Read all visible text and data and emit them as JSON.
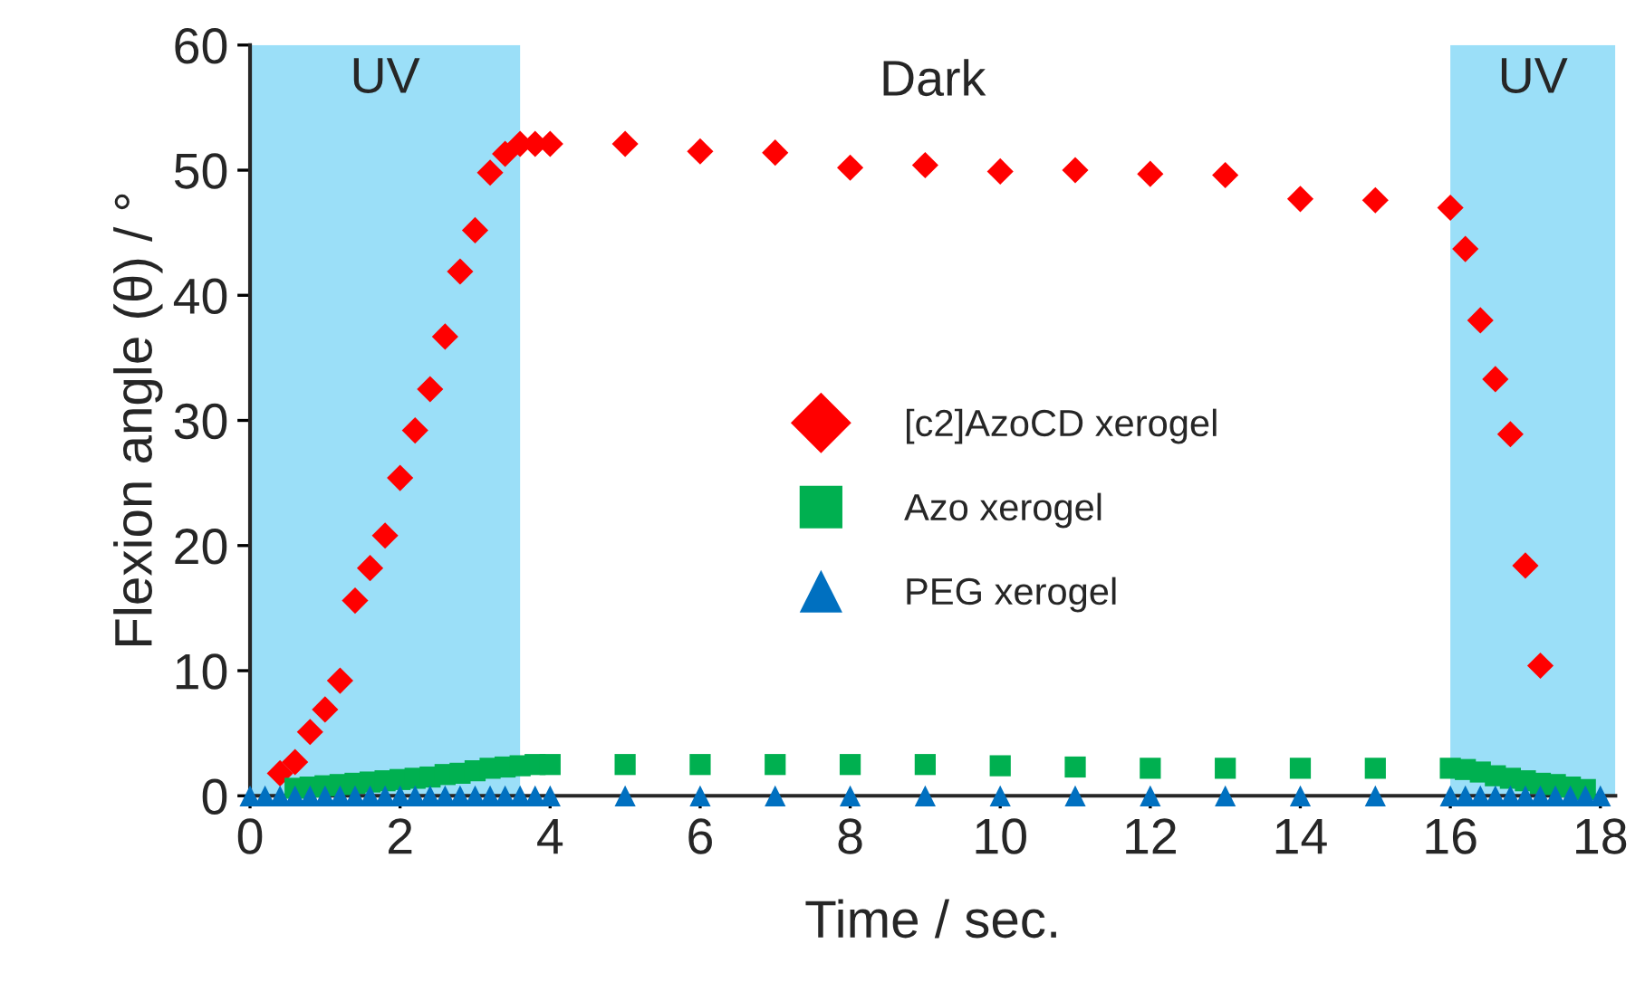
{
  "chart_data": {
    "type": "scatter",
    "xlabel": "Time / sec.",
    "ylabel": "Flexion angle (θ) / °",
    "xlim": [
      0,
      18.2
    ],
    "xticks": [
      0,
      2,
      4,
      6,
      8,
      10,
      12,
      14,
      16,
      18
    ],
    "ylim": [
      0,
      60
    ],
    "yticks": [
      0,
      10,
      20,
      30,
      40,
      50,
      60
    ],
    "grid": false,
    "legend": "center",
    "bands": [
      {
        "axis": "x",
        "from": 0,
        "to": 3.6,
        "label": "UV",
        "color": "#9bdff8"
      },
      {
        "axis": "x",
        "from": 16,
        "to": 18.2,
        "label": "UV",
        "color": "#9bdff8"
      }
    ],
    "annotations": [
      "Dark"
    ],
    "series": [
      {
        "name": "[c2]AzoCD xerogel",
        "color": "#ff0000",
        "marker": "diamond",
        "x": [
          0.4,
          0.6,
          0.8,
          1.0,
          1.2,
          1.4,
          1.6,
          1.8,
          2.0,
          2.2,
          2.4,
          2.6,
          2.8,
          3.0,
          3.2,
          3.4,
          3.6,
          3.8,
          4.0,
          5,
          6,
          7,
          8,
          9,
          10,
          11,
          12,
          13,
          14,
          15,
          16,
          16.2,
          16.4,
          16.6,
          16.8,
          17.0,
          17.2
        ],
        "values": [
          1.8,
          2.7,
          5.1,
          6.9,
          9.2,
          15.6,
          18.2,
          20.8,
          25.4,
          29.2,
          32.5,
          36.7,
          41.9,
          45.2,
          49.8,
          51.3,
          52.1,
          52.1,
          52.1,
          52.1,
          51.5,
          51.4,
          50.2,
          50.4,
          49.9,
          50.0,
          49.7,
          49.6,
          47.7,
          47.6,
          47.0,
          43.7,
          38.0,
          33.3,
          28.9,
          18.4,
          10.4
        ]
      },
      {
        "name": "Azo xerogel",
        "color": "#00b050",
        "marker": "square",
        "x": [
          0.6,
          0.8,
          1.0,
          1.2,
          1.4,
          1.6,
          1.8,
          2.0,
          2.2,
          2.4,
          2.6,
          2.8,
          3.0,
          3.2,
          3.4,
          3.6,
          3.8,
          4.0,
          5,
          6,
          7,
          8,
          9,
          10,
          11,
          12,
          13,
          14,
          15,
          16,
          16.2,
          16.4,
          16.6,
          16.8,
          17.0,
          17.2,
          17.4,
          17.6,
          17.8
        ],
        "values": [
          0.6,
          0.7,
          0.8,
          0.9,
          1.0,
          1.1,
          1.2,
          1.3,
          1.4,
          1.5,
          1.7,
          1.8,
          2.0,
          2.2,
          2.3,
          2.4,
          2.5,
          2.5,
          2.5,
          2.5,
          2.5,
          2.5,
          2.5,
          2.4,
          2.3,
          2.2,
          2.2,
          2.2,
          2.2,
          2.2,
          2.1,
          1.9,
          1.6,
          1.4,
          1.2,
          1.0,
          0.9,
          0.7,
          0.5
        ]
      },
      {
        "name": "PEG xerogel",
        "color": "#0070c0",
        "marker": "triangle",
        "x": [
          0,
          0.2,
          0.4,
          0.6,
          0.8,
          1.0,
          1.2,
          1.4,
          1.6,
          1.8,
          2.0,
          2.2,
          2.4,
          2.6,
          2.8,
          3.0,
          3.2,
          3.4,
          3.6,
          3.8,
          4.0,
          5,
          6,
          7,
          8,
          9,
          10,
          11,
          12,
          13,
          14,
          15,
          16,
          16.2,
          16.4,
          16.6,
          16.8,
          17.0,
          17.2,
          17.4,
          17.6,
          17.8,
          18.0
        ],
        "values": [
          0,
          0,
          0,
          0,
          0,
          0,
          0,
          0,
          0,
          0,
          0,
          0,
          0,
          0,
          0,
          0,
          0,
          0,
          0,
          0,
          0,
          0,
          0,
          0,
          0,
          0,
          0,
          0,
          0,
          0,
          0,
          0,
          0,
          0,
          0,
          0,
          0,
          0,
          0,
          0,
          0,
          0,
          0
        ]
      }
    ]
  }
}
